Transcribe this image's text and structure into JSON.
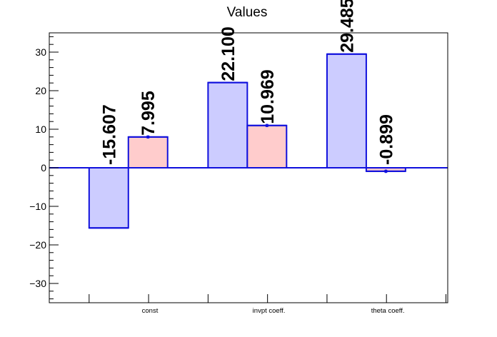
{
  "chart_data": {
    "type": "bar",
    "title": "Values",
    "categories": [
      "const",
      "invpt coeff.",
      "theta coeff."
    ],
    "series": [
      {
        "values": [
          -15.607,
          22.1,
          29.485
        ],
        "errors": [
          0,
          0,
          0
        ],
        "fill": "#ccccff",
        "stroke": "#1010dd"
      },
      {
        "values": [
          7.995,
          10.969,
          -0.899
        ],
        "errors": [
          0.4,
          0.4,
          0.45
        ],
        "fill": "#ffcccc",
        "stroke": "#1010dd"
      }
    ],
    "value_labels": [
      [
        "-15.607",
        "22.100",
        "29.485"
      ],
      [
        "7.995",
        "10.969",
        "-0.899"
      ]
    ],
    "ylim": [
      -35,
      35
    ],
    "yticks": [
      -30,
      -20,
      -10,
      0,
      10,
      20,
      30
    ],
    "grid": false,
    "legend": "none",
    "zero_line_color": "#1010dd"
  }
}
